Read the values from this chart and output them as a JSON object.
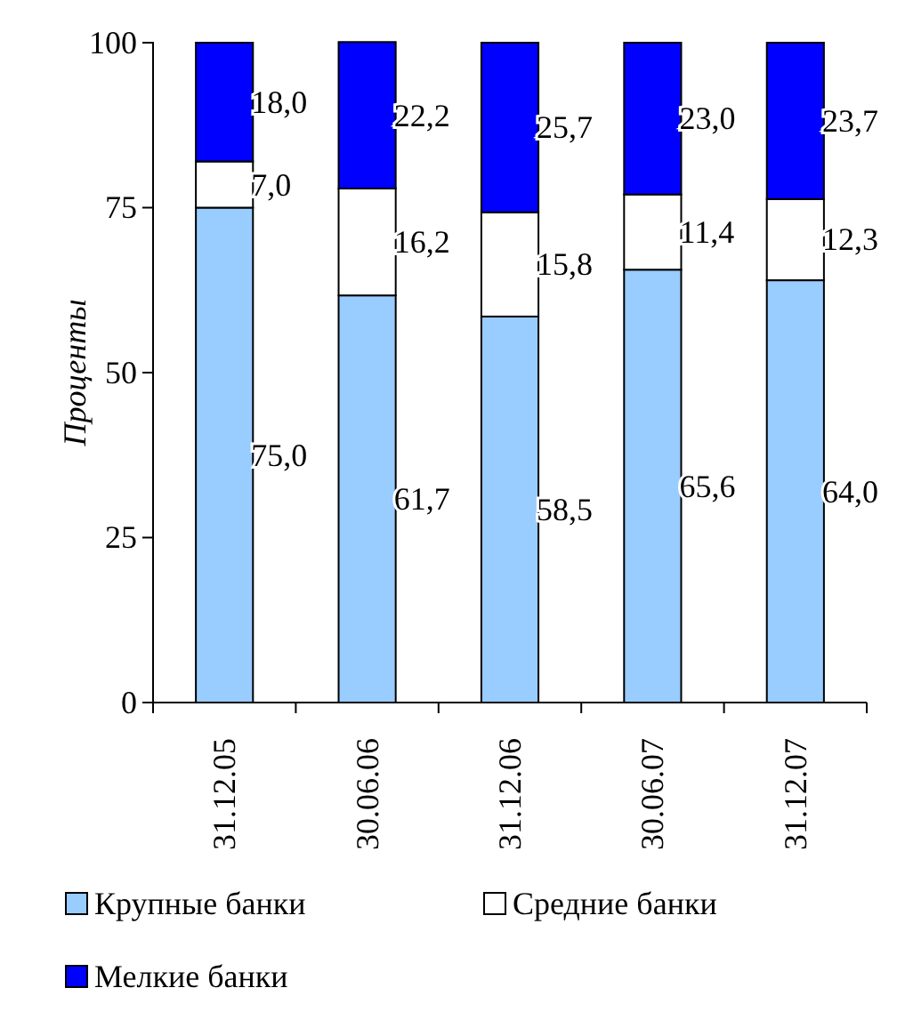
{
  "chart_data": {
    "type": "bar",
    "stacked": true,
    "ylabel": "Проценты",
    "categories": [
      "31.12.05",
      "30.06.06",
      "31.12.06",
      "30.06.07",
      "31.12.07"
    ],
    "series": [
      {
        "name": "Крупные банки",
        "color": "#99ccff",
        "values": [
          75.0,
          61.7,
          58.5,
          65.6,
          64.0
        ],
        "value_labels": [
          "75,0",
          "61,7",
          "58,5",
          "65,6",
          "64,0"
        ]
      },
      {
        "name": "Средние банки",
        "color": "#ffffff",
        "values": [
          7.0,
          16.2,
          15.8,
          11.4,
          12.3
        ],
        "value_labels": [
          "7,0",
          "16,2",
          "15,8",
          "11,4",
          "12,3"
        ]
      },
      {
        "name": "Мелкие банки",
        "color": "#0000ff",
        "values": [
          18.0,
          22.2,
          25.7,
          23.0,
          23.7
        ],
        "value_labels": [
          "18,0",
          "22,2",
          "25,7",
          "23,0",
          "23,7"
        ]
      }
    ],
    "ylim": [
      0,
      100
    ],
    "yticks": [
      0,
      25,
      50,
      75,
      100
    ],
    "grid": false,
    "legend": "bottom"
  }
}
